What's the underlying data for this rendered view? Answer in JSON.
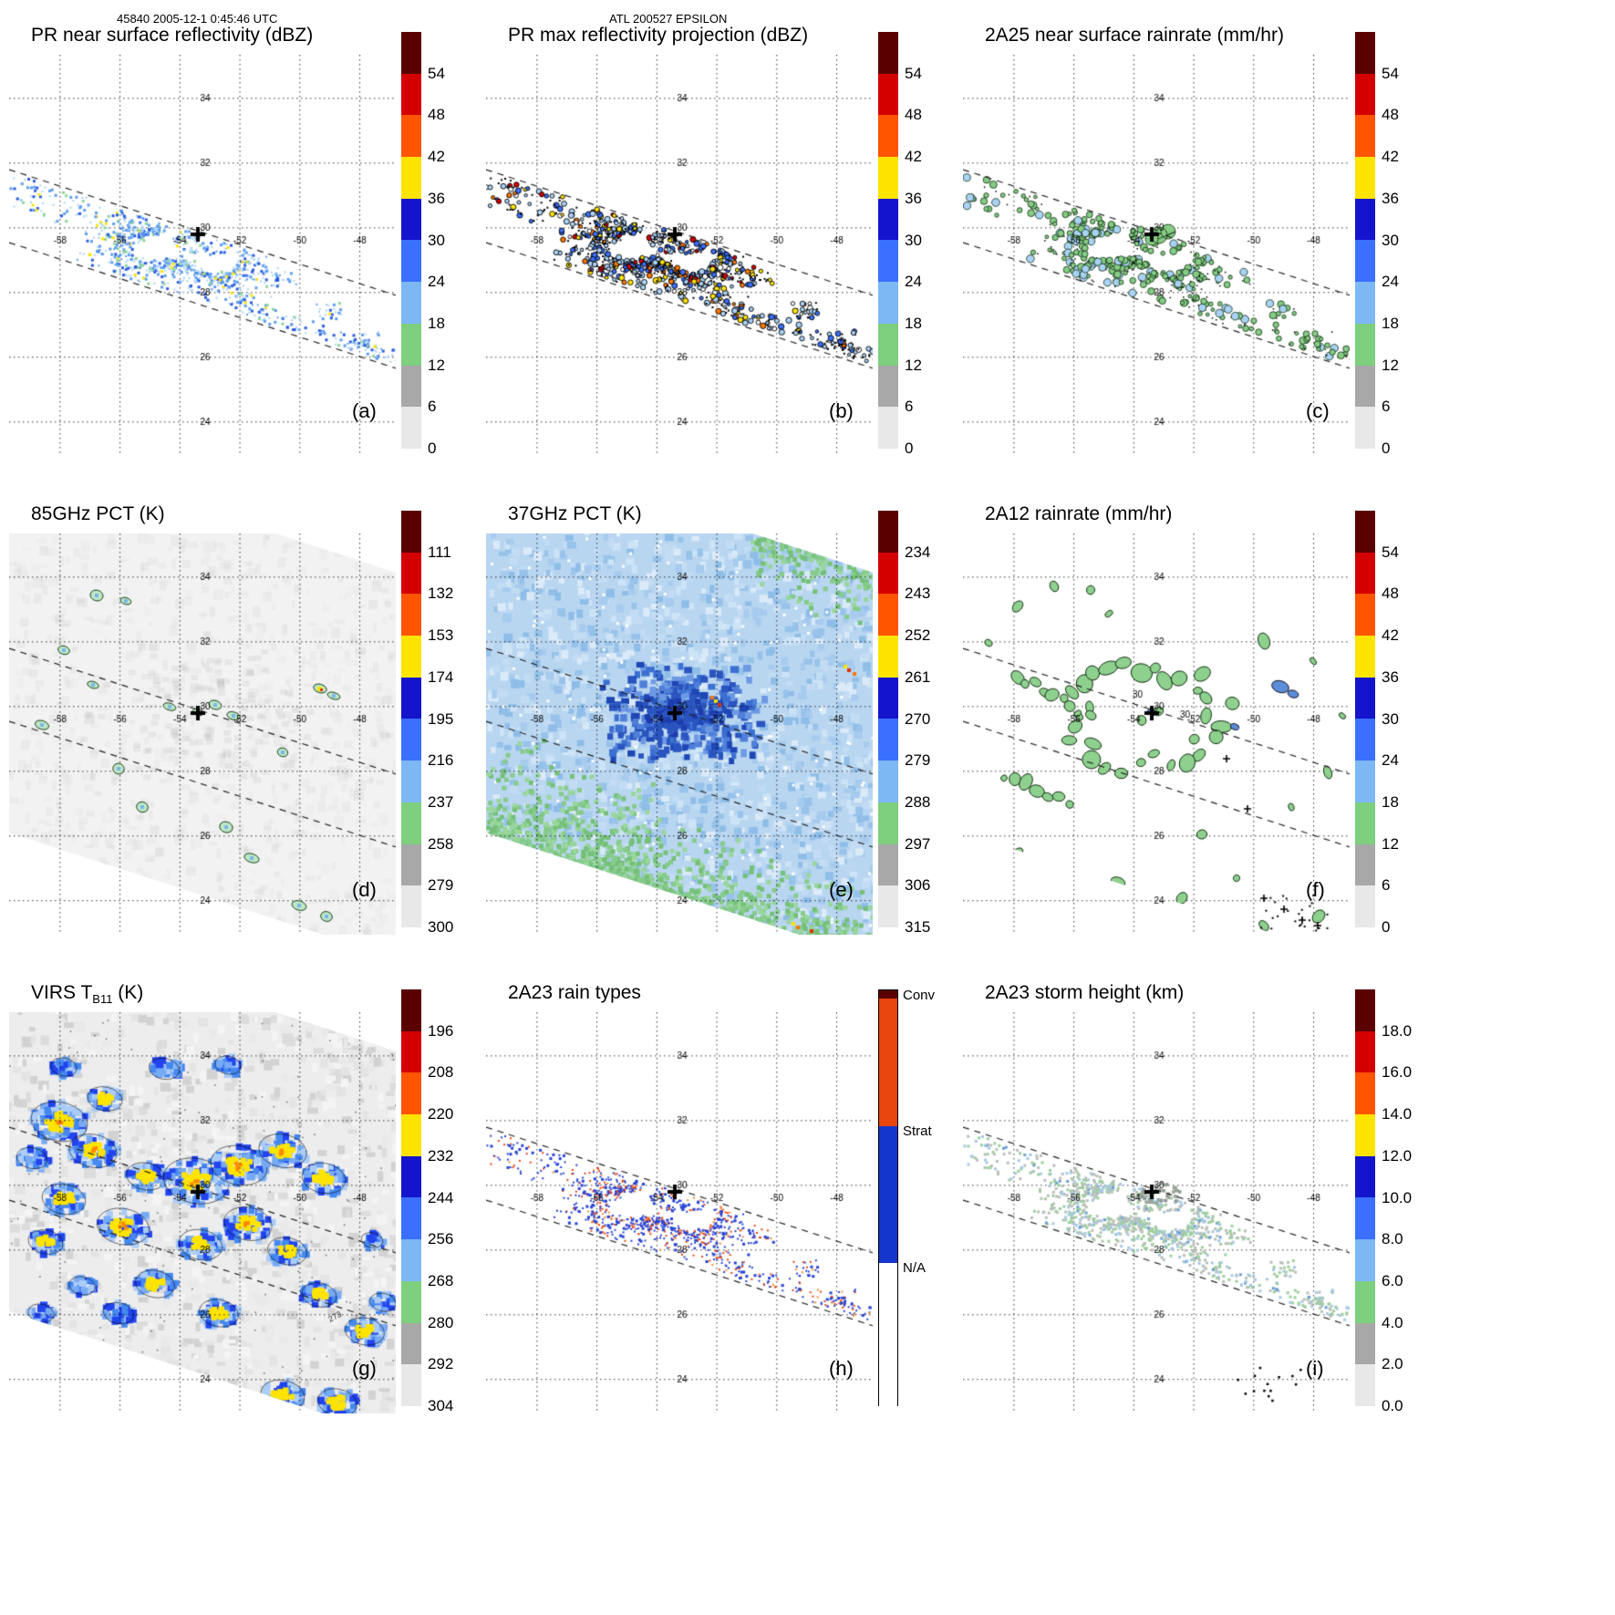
{
  "header": {
    "left": "45840 2005-12-1 0:45:46 UTC",
    "center": "ATL 200527 EPSILON"
  },
  "map": {
    "lats": [
      34,
      32,
      30,
      28,
      26,
      24
    ],
    "lat_labels": [
      "34",
      "32",
      "30",
      "28",
      "26",
      "24"
    ],
    "lons": [
      -58,
      -56,
      -54,
      -52,
      -50,
      -48
    ],
    "lon_labels": [
      "-58",
      "-56",
      "-54",
      "-52",
      "-50",
      "-48"
    ],
    "storm_center": {
      "lon": -53.4,
      "lat": 29.8
    },
    "storm_marker": "+"
  },
  "chart_data": [
    {
      "id": "a",
      "type": "heatmap",
      "row": 0,
      "col": 0,
      "render": "pr_z",
      "title": "PR near surface reflectivity (dBZ)",
      "letter": "(a)",
      "palette": {
        "dots": [
          "#a9d2f6",
          "#5e9ef0",
          "#2a5ce0",
          "#8fd598",
          "#ffe400"
        ]
      },
      "colorbar": {
        "ticks": [
          "54",
          "48",
          "42",
          "36",
          "30",
          "24",
          "18",
          "12",
          "6",
          "0"
        ],
        "segments": [
          "#5a0000",
          "#d40000",
          "#ff5500",
          "#ffe400",
          "#1414cc",
          "#3a6fff",
          "#7db8f5",
          "#7ecf7e",
          "#a8a8a8",
          "#e8e8e8"
        ]
      }
    },
    {
      "id": "b",
      "type": "heatmap",
      "row": 0,
      "col": 1,
      "render": "pr_max",
      "title": "PR max reflectivity projection (dBZ)",
      "letter": "(b)",
      "palette": {
        "dots": [
          "#a9d2f6",
          "#3a6fff",
          "#ffffff",
          "#ffe400",
          "#ff7700",
          "#d40000"
        ],
        "outline": "#000000"
      },
      "colorbar": {
        "ticks": [
          "54",
          "48",
          "42",
          "36",
          "30",
          "24",
          "18",
          "12",
          "6",
          "0"
        ],
        "segments": [
          "#5a0000",
          "#d40000",
          "#ff5500",
          "#ffe400",
          "#1414cc",
          "#3a6fff",
          "#7db8f5",
          "#7ecf7e",
          "#a8a8a8",
          "#e8e8e8"
        ]
      }
    },
    {
      "id": "c",
      "type": "heatmap",
      "row": 0,
      "col": 2,
      "render": "rr_2a25",
      "title": "2A25 near surface rainrate (mm/hr)",
      "letter": "(c)",
      "palette": {
        "blob": "#86cb86",
        "outline": "#0d2e0d"
      },
      "colorbar": {
        "ticks": [
          "54",
          "48",
          "42",
          "36",
          "30",
          "24",
          "18",
          "12",
          "6",
          "0"
        ],
        "segments": [
          "#5a0000",
          "#d40000",
          "#ff5500",
          "#ffe400",
          "#1414cc",
          "#3a6fff",
          "#7db8f5",
          "#7ecf7e",
          "#a8a8a8",
          "#e8e8e8"
        ]
      }
    },
    {
      "id": "d",
      "type": "heatmap",
      "row": 1,
      "col": 0,
      "render": "pct85",
      "title": "85GHz PCT (K)",
      "letter": "(d)",
      "palette": {
        "base": "#f2f2f2",
        "blob_fill": "#bfe7c6",
        "blob_edge": "#173f17",
        "inner": "#79b7e9",
        "hot": [
          "#ffe400",
          "#e03000"
        ]
      },
      "colorbar": {
        "ticks": [
          "111",
          "132",
          "153",
          "174",
          "195",
          "216",
          "237",
          "258",
          "279",
          "300"
        ],
        "segments": [
          "#5a0000",
          "#d40000",
          "#ff5500",
          "#ffe400",
          "#1414cc",
          "#3a6fff",
          "#7db8f5",
          "#7ecf7e",
          "#a8a8a8",
          "#e8e8e8"
        ]
      }
    },
    {
      "id": "e",
      "type": "heatmap",
      "row": 1,
      "col": 1,
      "render": "pct37",
      "title": "37GHz PCT (K)",
      "letter": "(e)",
      "palette": {
        "base": "#b9d6f1",
        "light": [
          "#cde3f6",
          "#a6cbee",
          "#8ebde8",
          "#c3dcf4",
          "#97c2ea",
          "#daeaf8"
        ],
        "core": [
          "#3b6fd1",
          "#2a55c0",
          "#4f7fd8",
          "#6d99e4",
          "#1e46b4"
        ],
        "green": [
          "#86cb8b",
          "#74c078",
          "#98d69c"
        ],
        "hot": [
          "#ffe400",
          "#e03000",
          "#ff7700"
        ]
      },
      "colorbar": {
        "ticks": [
          "234",
          "243",
          "252",
          "261",
          "270",
          "279",
          "288",
          "297",
          "306",
          "315"
        ],
        "segments": [
          "#5a0000",
          "#d40000",
          "#ff5500",
          "#ffe400",
          "#1414cc",
          "#3a6fff",
          "#7db8f5",
          "#7ecf7e",
          "#a8a8a8",
          "#e8e8e8"
        ]
      }
    },
    {
      "id": "f",
      "type": "heatmap",
      "row": 1,
      "col": 2,
      "render": "rr_2a12",
      "title": "2A12 rainrate (mm/hr)",
      "letter": "(f)",
      "contour_labels": [
        "30",
        "30"
      ],
      "palette": {
        "blob": "#8ed08e",
        "outline": "#112e11",
        "blue": "#5b8dd9"
      },
      "colorbar": {
        "ticks": [
          "54",
          "48",
          "42",
          "36",
          "30",
          "24",
          "18",
          "12",
          "6",
          "0"
        ],
        "segments": [
          "#5a0000",
          "#d40000",
          "#ff5500",
          "#ffe400",
          "#1414cc",
          "#3a6fff",
          "#7db8f5",
          "#7ecf7e",
          "#a8a8a8",
          "#e8e8e8"
        ]
      }
    },
    {
      "id": "g",
      "type": "heatmap",
      "row": 2,
      "col": 0,
      "render": "virs",
      "title_main": "VIRS T",
      "title_sub": "B11",
      "title_suffix": " (K)",
      "letter": "(g)",
      "annotation": "273",
      "palette": {
        "base": "#ededed",
        "grays": [
          "#e4e4e4",
          "#dcdcdc",
          "#f4f4f4",
          "#d2d2d2",
          "#e9e9e9"
        ],
        "blues": [
          "#2244ee",
          "#4488f0",
          "#77aaf4",
          "#aaccf8"
        ],
        "core": "#ffe400",
        "hot": "#ff8800"
      },
      "colorbar": {
        "ticks": [
          "196",
          "208",
          "220",
          "232",
          "244",
          "256",
          "268",
          "280",
          "292",
          "304"
        ],
        "segments": [
          "#5a0000",
          "#d40000",
          "#ff5500",
          "#ffe400",
          "#1414cc",
          "#3a6fff",
          "#7db8f5",
          "#7ecf7e",
          "#a8a8a8",
          "#e8e8e8"
        ]
      }
    },
    {
      "id": "h",
      "type": "heatmap",
      "row": 2,
      "col": 1,
      "render": "raintype",
      "title": "2A23 rain types",
      "letter": "(h)",
      "palette": {
        "dots": [
          "#2743d6",
          "#e8450f",
          "#ff8833"
        ]
      },
      "colorbar": {
        "type": "categorical",
        "segments": [
          {
            "color": "#5a0000",
            "frac": 0.02
          },
          {
            "color": "#e8450f",
            "frac": 0.305
          },
          {
            "color": "#1536cc",
            "frac": 0.33
          },
          {
            "color": "#ffffff",
            "frac": 0.345
          }
        ],
        "labels": [
          {
            "text": "Conv",
            "frac": 0.0
          },
          {
            "text": "Strat",
            "frac": 0.325
          },
          {
            "text": "N/A",
            "frac": 0.655
          }
        ]
      }
    },
    {
      "id": "i",
      "type": "heatmap",
      "row": 2,
      "col": 2,
      "render": "stormht",
      "title": "2A23 storm height (km)",
      "letter": "(i)",
      "palette": {
        "dots": [
          "#b9c0b9",
          "#9ccf9c",
          "#a6c8e6",
          "#6b9fd4"
        ]
      },
      "colorbar": {
        "ticks": [
          "18.0",
          "16.0",
          "14.0",
          "12.0",
          "10.0",
          "8.0",
          "6.0",
          "4.0",
          "2.0",
          "0.0"
        ],
        "segments": [
          "#5a0000",
          "#d40000",
          "#ff5500",
          "#ffe400",
          "#1414cc",
          "#3a6fff",
          "#7db8f5",
          "#7ecf7e",
          "#a8a8a8",
          "#e8e8e8"
        ]
      }
    }
  ]
}
